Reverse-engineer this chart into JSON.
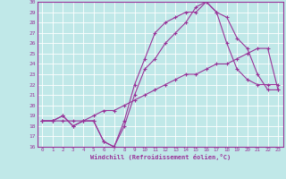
{
  "xlabel": "Windchill (Refroidissement éolien,°C)",
  "xlim": [
    -0.5,
    23.5
  ],
  "ylim": [
    16,
    30
  ],
  "yticks": [
    16,
    17,
    18,
    19,
    20,
    21,
    22,
    23,
    24,
    25,
    26,
    27,
    28,
    29,
    30
  ],
  "xticks": [
    0,
    1,
    2,
    3,
    4,
    5,
    6,
    7,
    8,
    9,
    10,
    11,
    12,
    13,
    14,
    15,
    16,
    17,
    18,
    19,
    20,
    21,
    22,
    23
  ],
  "background_color": "#c0e8e8",
  "grid_color": "#ffffff",
  "line_color": "#993399",
  "line1_x": [
    0,
    1,
    2,
    3,
    4,
    5,
    6,
    7,
    8,
    9,
    10,
    11,
    12,
    13,
    14,
    15,
    16,
    17,
    18,
    19,
    20,
    21,
    22,
    23
  ],
  "line1_y": [
    18.5,
    18.5,
    18.5,
    18.5,
    18.5,
    19.0,
    19.5,
    19.5,
    20.0,
    20.5,
    21.0,
    21.5,
    22.0,
    22.5,
    23.0,
    23.0,
    23.5,
    24.0,
    24.0,
    24.5,
    25.0,
    25.5,
    25.5,
    21.5
  ],
  "line2_x": [
    0,
    1,
    2,
    3,
    4,
    5,
    6,
    7,
    8,
    9,
    10,
    11,
    12,
    13,
    14,
    15,
    16,
    17,
    18,
    19,
    20,
    21,
    22,
    23
  ],
  "line2_y": [
    18.5,
    18.5,
    19.0,
    18.0,
    18.5,
    18.5,
    16.5,
    16.0,
    18.0,
    21.0,
    23.5,
    24.5,
    26.0,
    27.0,
    28.0,
    29.5,
    30.0,
    29.0,
    28.5,
    26.5,
    25.5,
    23.0,
    21.5,
    21.5
  ],
  "line3_x": [
    0,
    1,
    2,
    3,
    4,
    5,
    6,
    7,
    8,
    9,
    10,
    11,
    12,
    13,
    14,
    15,
    16,
    17,
    18,
    19,
    20,
    21,
    22,
    23
  ],
  "line3_y": [
    18.5,
    18.5,
    19.0,
    18.0,
    18.5,
    18.5,
    16.5,
    16.0,
    18.5,
    22.0,
    24.5,
    27.0,
    28.0,
    28.5,
    29.0,
    29.0,
    30.0,
    29.0,
    26.0,
    23.5,
    22.5,
    22.0,
    22.0,
    22.0
  ]
}
